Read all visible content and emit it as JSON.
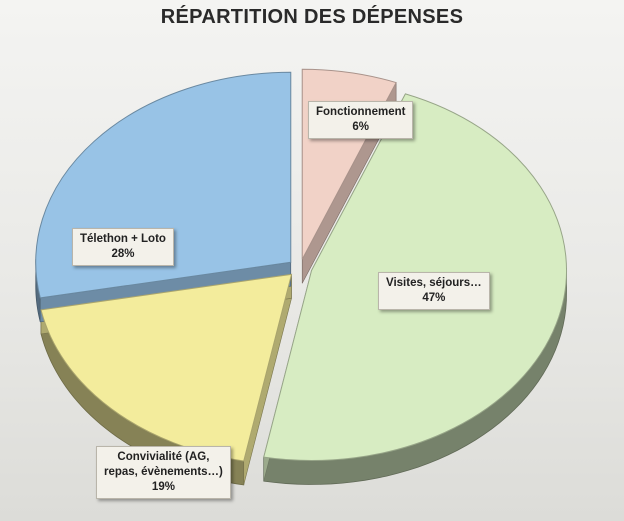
{
  "chart_data": {
    "type": "pie",
    "title": "RÉPARTITION DES DÉPENSES",
    "slices": [
      {
        "label": "Fonctionnement",
        "value": 6,
        "value_label": "6%",
        "color": "#f1d2c7"
      },
      {
        "label": "Visites, séjours…",
        "value": 47,
        "value_label": "47%",
        "color": "#d7ecc2"
      },
      {
        "label": "Convivialité (AG, repas, évènements…)",
        "label_lines": [
          "Convivialité (AG,",
          "repas, évènements…)"
        ],
        "value": 19,
        "value_label": "19%",
        "color": "#f3ec9c"
      },
      {
        "label": "Télethon + Loto",
        "value": 28,
        "value_label": "28%",
        "color": "#98c3e6"
      }
    ],
    "exploded": true,
    "style": "3d"
  }
}
